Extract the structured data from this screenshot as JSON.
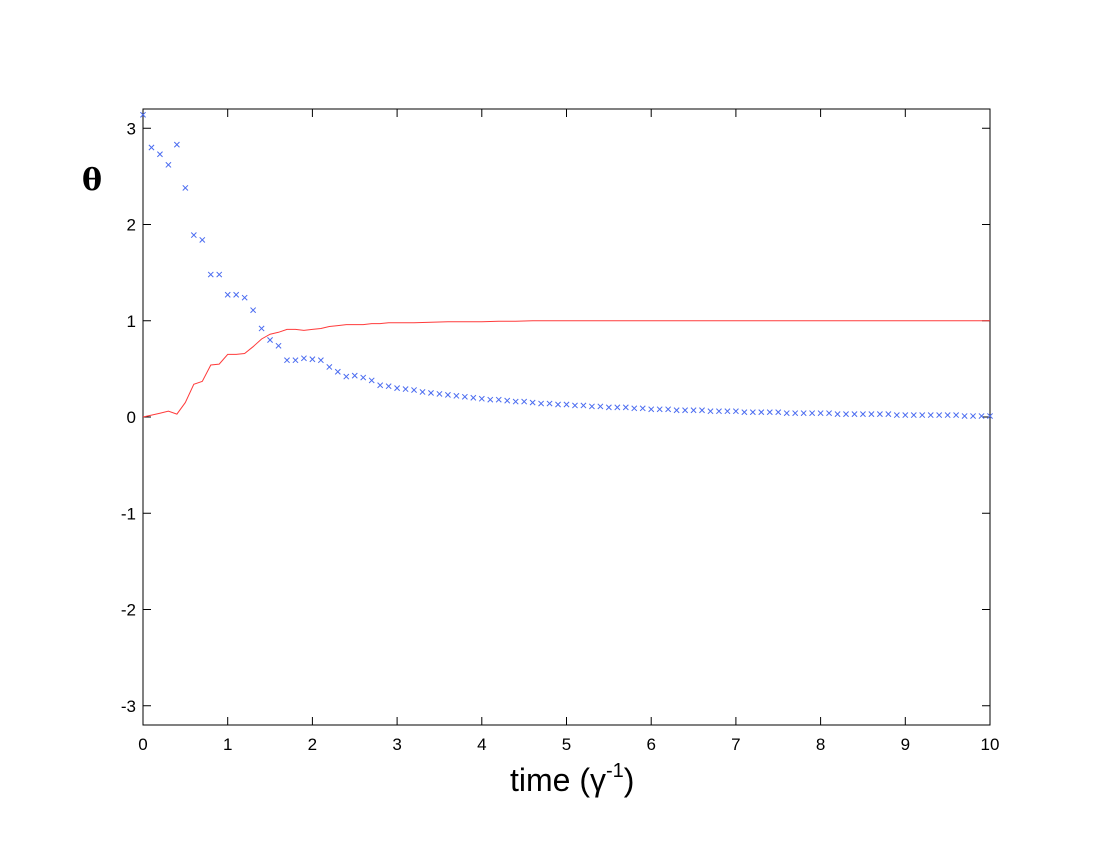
{
  "chart_data": {
    "type": "line",
    "title": "",
    "xlabel": "time (γ",
    "xlabel_superscript": "-1",
    "xlabel_suffix": ")",
    "ylabel": "θ",
    "xlim": [
      0,
      10
    ],
    "ylim": [
      -3.2,
      3.2
    ],
    "xticks": [
      0,
      1,
      2,
      3,
      4,
      5,
      6,
      7,
      8,
      9,
      10
    ],
    "yticks": [
      3,
      2,
      1,
      0,
      -1,
      -2,
      -3
    ],
    "xtick_labels": [
      "0",
      "1",
      "2",
      "3",
      "4",
      "5",
      "6",
      "7",
      "8",
      "9",
      "10"
    ],
    "ytick_labels": [
      "3",
      "2",
      "1",
      "0",
      "-1",
      "-2",
      "-3"
    ],
    "grid": false,
    "series": [
      {
        "style": "markers-x",
        "color": "#4b6cf0",
        "x": [
          0,
          0.1,
          0.2,
          0.3,
          0.4,
          0.5,
          0.6,
          0.7,
          0.8,
          0.9,
          1.0,
          1.1,
          1.2,
          1.3,
          1.4,
          1.5,
          1.6,
          1.7,
          1.8,
          1.9,
          2.0,
          2.1,
          2.2,
          2.3,
          2.4,
          2.5,
          2.6,
          2.7,
          2.8,
          2.9,
          3.0,
          3.1,
          3.2,
          3.3,
          3.4,
          3.5,
          3.6,
          3.7,
          3.8,
          3.9,
          4.0,
          4.1,
          4.2,
          4.3,
          4.4,
          4.5,
          4.6,
          4.7,
          4.8,
          4.9,
          5.0,
          5.1,
          5.2,
          5.3,
          5.4,
          5.5,
          5.6,
          5.7,
          5.8,
          5.9,
          6.0,
          6.1,
          6.2,
          6.3,
          6.4,
          6.5,
          6.6,
          6.7,
          6.8,
          6.9,
          7.0,
          7.1,
          7.2,
          7.3,
          7.4,
          7.5,
          7.6,
          7.7,
          7.8,
          7.9,
          8.0,
          8.1,
          8.2,
          8.3,
          8.4,
          8.5,
          8.6,
          8.7,
          8.8,
          8.9,
          9.0,
          9.1,
          9.2,
          9.3,
          9.4,
          9.5,
          9.6,
          9.7,
          9.8,
          9.9,
          10.0
        ],
        "y": [
          3.14,
          2.8,
          2.73,
          2.62,
          2.83,
          2.38,
          1.89,
          1.84,
          1.48,
          1.48,
          1.27,
          1.27,
          1.24,
          1.11,
          0.92,
          0.8,
          0.74,
          0.59,
          0.59,
          0.61,
          0.6,
          0.59,
          0.52,
          0.47,
          0.42,
          0.43,
          0.41,
          0.38,
          0.33,
          0.32,
          0.3,
          0.29,
          0.28,
          0.26,
          0.25,
          0.24,
          0.23,
          0.22,
          0.21,
          0.2,
          0.19,
          0.18,
          0.18,
          0.17,
          0.16,
          0.16,
          0.15,
          0.14,
          0.14,
          0.13,
          0.13,
          0.12,
          0.12,
          0.11,
          0.11,
          0.1,
          0.1,
          0.1,
          0.09,
          0.09,
          0.08,
          0.08,
          0.08,
          0.07,
          0.07,
          0.07,
          0.07,
          0.06,
          0.06,
          0.06,
          0.06,
          0.05,
          0.05,
          0.05,
          0.05,
          0.05,
          0.04,
          0.04,
          0.04,
          0.04,
          0.04,
          0.04,
          0.03,
          0.03,
          0.03,
          0.03,
          0.03,
          0.03,
          0.03,
          0.02,
          0.02,
          0.02,
          0.02,
          0.02,
          0.02,
          0.02,
          0.02,
          0.01,
          0.01,
          0.01,
          0.01
        ]
      },
      {
        "style": "line",
        "color": "#ff3b3b",
        "x": [
          0,
          0.1,
          0.2,
          0.3,
          0.4,
          0.5,
          0.6,
          0.7,
          0.8,
          0.9,
          1.0,
          1.1,
          1.2,
          1.3,
          1.4,
          1.5,
          1.6,
          1.7,
          1.8,
          1.9,
          2.0,
          2.1,
          2.2,
          2.3,
          2.4,
          2.5,
          2.6,
          2.7,
          2.8,
          2.9,
          3.0,
          3.2,
          3.4,
          3.6,
          3.8,
          4.0,
          4.2,
          4.4,
          4.6,
          4.8,
          5.0,
          5.5,
          6.0,
          6.5,
          7.0,
          7.5,
          8.0,
          8.5,
          9.0,
          9.5,
          10.0
        ],
        "y": [
          0.0,
          0.02,
          0.04,
          0.06,
          0.03,
          0.15,
          0.34,
          0.37,
          0.54,
          0.55,
          0.65,
          0.65,
          0.66,
          0.73,
          0.81,
          0.86,
          0.88,
          0.91,
          0.91,
          0.9,
          0.91,
          0.92,
          0.94,
          0.95,
          0.96,
          0.96,
          0.96,
          0.97,
          0.97,
          0.98,
          0.98,
          0.98,
          0.985,
          0.99,
          0.99,
          0.99,
          0.995,
          0.995,
          1.0,
          1.0,
          1.0,
          1.0,
          1.0,
          1.0,
          1.0,
          1.0,
          1.0,
          1.0,
          1.0,
          1.0,
          1.0
        ]
      }
    ]
  }
}
